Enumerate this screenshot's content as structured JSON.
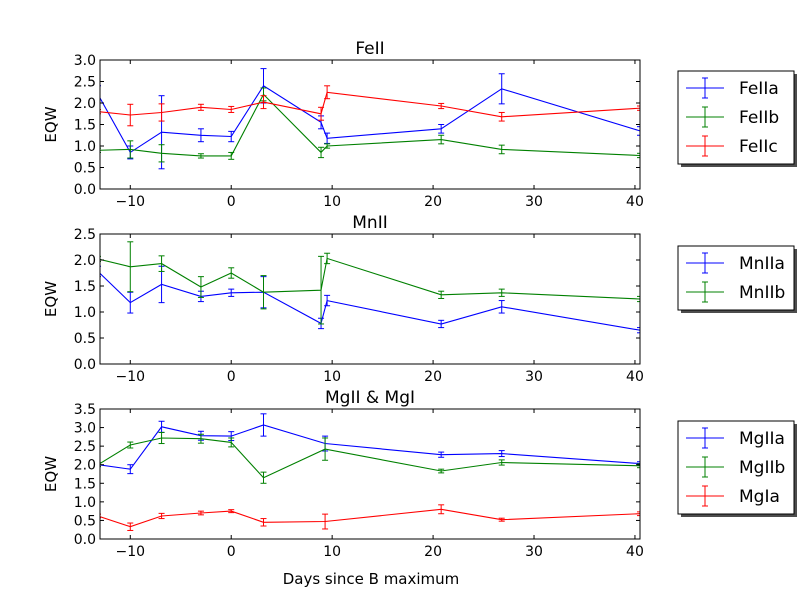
{
  "figure": {
    "xlabel": "Days since B maximum"
  },
  "chart_data": [
    {
      "type": "line",
      "title": "FeII",
      "ylabel": "EQW",
      "xlim": [
        -13,
        40.5
      ],
      "ylim": [
        0,
        3.0
      ],
      "xticks": [
        -10,
        0,
        10,
        20,
        30,
        40
      ],
      "yticks": [
        0.0,
        0.5,
        1.0,
        1.5,
        2.0,
        2.5,
        3.0
      ],
      "legend_position": "right",
      "series": [
        {
          "name": "FeIIa",
          "color": "#0000ff",
          "x": [
            -13.2,
            -10,
            -6.9,
            -3,
            0,
            3.2,
            8.9,
            9.5,
            20.8,
            26.8,
            40.5
          ],
          "y": [
            2.2,
            0.85,
            1.32,
            1.25,
            1.22,
            2.4,
            1.55,
            1.18,
            1.4,
            2.33,
            1.35
          ],
          "err": [
            0.2,
            0.15,
            0.85,
            0.15,
            0.12,
            0.4,
            0.15,
            0.12,
            0.1,
            0.35,
            0.1
          ]
        },
        {
          "name": "FeIIb",
          "color": "#008000",
          "x": [
            -13.2,
            -10,
            -6.9,
            -3,
            0,
            3.2,
            8.9,
            9.5,
            20.8,
            26.8,
            40.5
          ],
          "y": [
            0.9,
            0.92,
            0.83,
            0.77,
            0.77,
            2.2,
            0.85,
            1.0,
            1.15,
            0.92,
            0.78
          ],
          "err": [
            0.05,
            0.2,
            0.2,
            0.05,
            0.08,
            0.15,
            0.12,
            0.05,
            0.1,
            0.1,
            0.05
          ]
        },
        {
          "name": "FeIIc",
          "color": "#ff0000",
          "x": [
            -13.2,
            -10,
            -6.9,
            -3,
            0,
            3.2,
            8.9,
            9.5,
            20.8,
            26.8,
            40.5
          ],
          "y": [
            1.8,
            1.72,
            1.78,
            1.9,
            1.85,
            2.02,
            1.75,
            2.25,
            1.93,
            1.68,
            1.88
          ],
          "err": [
            0.05,
            0.25,
            0.2,
            0.07,
            0.07,
            0.15,
            0.15,
            0.15,
            0.06,
            0.1,
            0.05
          ]
        }
      ]
    },
    {
      "type": "line",
      "title": "MnII",
      "ylabel": "EQW",
      "xlim": [
        -13,
        40.5
      ],
      "ylim": [
        0,
        2.5
      ],
      "xticks": [
        -10,
        0,
        10,
        20,
        30,
        40
      ],
      "yticks": [
        0.0,
        0.5,
        1.0,
        1.5,
        2.0,
        2.5
      ],
      "legend_position": "right",
      "series": [
        {
          "name": "MnIIa",
          "color": "#0000ff",
          "x": [
            -13.2,
            -10,
            -6.9,
            -3,
            0,
            3.2,
            8.9,
            9.5,
            20.8,
            26.8,
            40.5
          ],
          "y": [
            1.78,
            1.18,
            1.53,
            1.3,
            1.37,
            1.38,
            0.78,
            1.22,
            0.77,
            1.1,
            0.65
          ],
          "err": [
            0.1,
            0.2,
            0.35,
            0.1,
            0.07,
            0.3,
            0.1,
            0.1,
            0.07,
            0.12,
            0.05
          ]
        },
        {
          "name": "MnIIb",
          "color": "#008000",
          "x": [
            -13.2,
            -10,
            -6.9,
            -3,
            0,
            3.2,
            8.9,
            9.5,
            20.8,
            26.8,
            40.5
          ],
          "y": [
            2.02,
            1.87,
            1.93,
            1.48,
            1.75,
            1.38,
            1.42,
            2.03,
            1.33,
            1.37,
            1.25
          ],
          "err": [
            0.05,
            0.48,
            0.15,
            0.2,
            0.1,
            0.32,
            0.65,
            0.1,
            0.07,
            0.07,
            0.05
          ]
        }
      ]
    },
    {
      "type": "line",
      "title": "MgII & MgI",
      "ylabel": "EQW",
      "xlabel": "Days since B maximum",
      "xlim": [
        -13,
        40.5
      ],
      "ylim": [
        0,
        3.5
      ],
      "xticks": [
        -10,
        0,
        10,
        20,
        30,
        40
      ],
      "yticks": [
        0.0,
        0.5,
        1.0,
        1.5,
        2.0,
        2.5,
        3.0,
        3.5
      ],
      "legend_position": "right",
      "series": [
        {
          "name": "MgIIa",
          "color": "#0000ff",
          "x": [
            -13.2,
            -10,
            -6.9,
            -3,
            0,
            3.2,
            9.3,
            20.8,
            26.8,
            40.5
          ],
          "y": [
            2.0,
            1.88,
            3.02,
            2.78,
            2.77,
            3.07,
            2.57,
            2.27,
            2.3,
            2.03
          ],
          "err": [
            0.05,
            0.12,
            0.15,
            0.12,
            0.12,
            0.3,
            0.2,
            0.07,
            0.08,
            0.05
          ]
        },
        {
          "name": "MgIIb",
          "color": "#008000",
          "x": [
            -13.2,
            -10,
            -6.9,
            -3,
            0,
            3.2,
            9.3,
            20.8,
            26.8,
            40.5
          ],
          "y": [
            2.0,
            2.53,
            2.72,
            2.7,
            2.6,
            1.65,
            2.42,
            1.83,
            2.06,
            1.97
          ],
          "err": [
            0.05,
            0.08,
            0.15,
            0.12,
            0.12,
            0.15,
            0.3,
            0.05,
            0.07,
            0.05
          ]
        },
        {
          "name": "MgIa",
          "color": "#ff0000",
          "x": [
            -13.2,
            -10,
            -6.9,
            -3,
            0,
            3.2,
            9.3,
            20.8,
            26.8,
            40.5
          ],
          "y": [
            0.62,
            0.33,
            0.62,
            0.7,
            0.75,
            0.45,
            0.47,
            0.8,
            0.52,
            0.68
          ],
          "err": [
            0.05,
            0.1,
            0.07,
            0.05,
            0.04,
            0.1,
            0.2,
            0.12,
            0.04,
            0.05
          ]
        }
      ]
    }
  ]
}
